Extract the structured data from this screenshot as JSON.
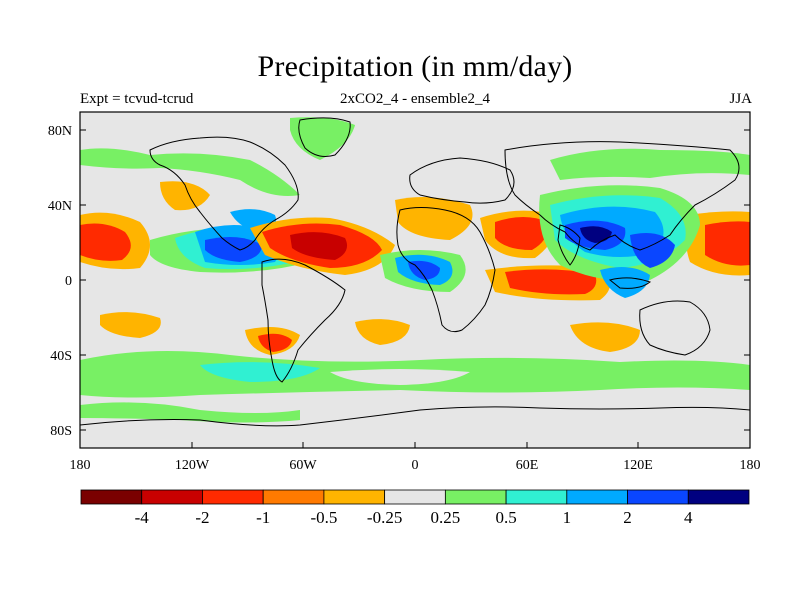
{
  "header": {
    "title": "Precipitation (in mm/day)",
    "left_label": "Expt = tcvud-tcrud",
    "center_label": "2xCO2_4 - ensemble2_4",
    "right_label": "JJA"
  },
  "axes": {
    "lat_ticks": [
      "80N",
      "40N",
      "0",
      "40S",
      "80S"
    ],
    "lon_ticks": [
      "180",
      "120W",
      "60W",
      "0",
      "60E",
      "120E",
      "180"
    ]
  },
  "colorbar": {
    "colors": [
      "#7a0000",
      "#c80000",
      "#ff2a00",
      "#ff7a00",
      "#ffb400",
      "#e6e6e6",
      "#78f064",
      "#30f0d2",
      "#00aaff",
      "#0a46ff",
      "#000080"
    ],
    "labels": [
      "-4",
      "-2",
      "-1",
      "-0.5",
      "-0.25",
      "0.25",
      "0.5",
      "1",
      "2",
      "4"
    ]
  },
  "map": {
    "background": "#e6e6e6",
    "projection": "cylindrical-equidistant"
  }
}
